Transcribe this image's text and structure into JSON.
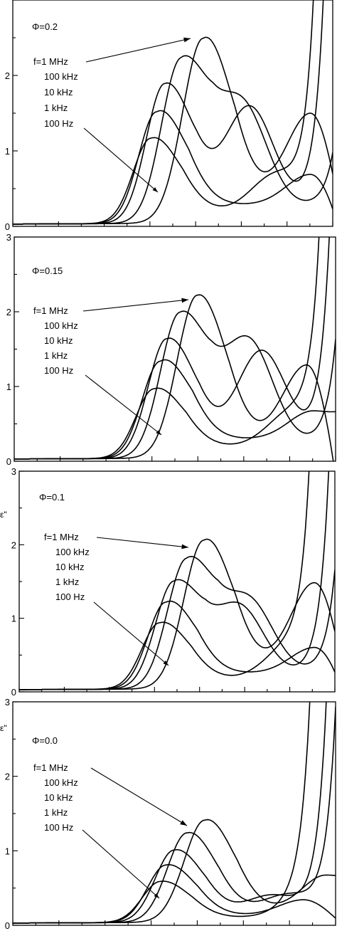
{
  "chart_data": [
    {
      "type": "line",
      "panel_label": "Φ=0.2",
      "ylabel": "",
      "ylim": [
        0,
        3
      ],
      "yticks": [
        "0",
        "1",
        "2",
        ""
      ],
      "legend": [
        "f=1 MHz",
        "100 kHz",
        "10 kHz",
        "1 kHz",
        "100 Hz"
      ],
      "series": [
        {
          "peak": {
            "x": 0.595,
            "y": 2.45
          },
          "sec": {
            "x": 0.93,
            "y": 1.3
          },
          "endY": 0.9,
          "rise": 2.0,
          "valley": 0.5
        },
        {
          "peak": {
            "x": 0.525,
            "y": 2.15
          },
          "sec": {
            "x": 0.72,
            "y": 1.4
          },
          "endY": 3.0,
          "rise": 0.92,
          "valley": 0.35
        },
        {
          "peak": {
            "x": 0.475,
            "y": 1.85
          },
          "sec": {
            "x": 0.74,
            "y": 1.45
          },
          "endY": 3.0,
          "rise": 0.85,
          "valley": 0.3
        },
        {
          "peak": {
            "x": 0.45,
            "y": 1.48
          },
          "sec": {
            "x": 0.93,
            "y": 0.52
          },
          "endY": 0.2,
          "rise": 2.0,
          "valley": 0.4
        },
        {
          "peak": {
            "x": 0.432,
            "y": 1.13
          },
          "sec": {
            "x": 0.82,
            "y": 0.55
          },
          "endY": 3.0,
          "rise": 0.82,
          "valley": 0.25
        }
      ]
    },
    {
      "type": "line",
      "panel_label": "Φ=0.15",
      "ylabel": "",
      "ylim": [
        0,
        3
      ],
      "yticks": [
        "0",
        "1",
        "2",
        "3"
      ],
      "legend": [
        "f=1 MHz",
        "100 kHz",
        "10 kHz",
        "1 kHz",
        "100 Hz"
      ],
      "series": [
        {
          "peak": {
            "x": 0.57,
            "y": 2.18
          },
          "sec": {
            "x": 0.91,
            "y": 1.15
          },
          "endY": 0.2,
          "rise": 2.0,
          "valley": 0.3
        },
        {
          "peak": {
            "x": 0.515,
            "y": 1.93
          },
          "sec": {
            "x": 0.73,
            "y": 1.45
          },
          "endY": 3.0,
          "rise": 0.9,
          "valley": 0.3
        },
        {
          "peak": {
            "x": 0.475,
            "y": 1.6
          },
          "sec": {
            "x": 0.77,
            "y": 1.35
          },
          "endY": 3.0,
          "rise": 0.86,
          "valley": 0.28
        },
        {
          "peak": {
            "x": 0.455,
            "y": 1.3
          },
          "sec": {
            "x": 0.93,
            "y": 0.5
          },
          "endY": 0.62,
          "rise": 2.0,
          "valley": 0.42
        },
        {
          "peak": {
            "x": 0.435,
            "y": 0.93
          },
          "sec": {
            "x": 0.86,
            "y": 0.5
          },
          "endY": 3.0,
          "rise": 0.83,
          "valley": 0.25
        }
      ]
    },
    {
      "type": "line",
      "panel_label": "Φ=0.1",
      "ylabel": "ε\"",
      "ylim": [
        0,
        3
      ],
      "yticks": [
        "0",
        "1",
        "2",
        "3"
      ],
      "legend": [
        "f=1 MHz",
        "100 kHz",
        "10 kHz",
        "1 kHz",
        "100 Hz"
      ],
      "series": [
        {
          "peak": {
            "x": 0.585,
            "y": 2.02
          },
          "sec": {
            "x": 0.935,
            "y": 1.3
          },
          "endY": 1.0,
          "rise": 2.0,
          "valley": 0.45
        },
        {
          "peak": {
            "x": 0.53,
            "y": 1.75
          },
          "sec": {
            "x": 0.73,
            "y": 1.05
          },
          "endY": 3.0,
          "rise": 0.9,
          "valley": 0.35
        },
        {
          "peak": {
            "x": 0.49,
            "y": 1.45
          },
          "sec": {
            "x": 0.7,
            "y": 1.0
          },
          "endY": 3.0,
          "rise": 0.86,
          "valley": 0.3
        },
        {
          "peak": {
            "x": 0.465,
            "y": 1.18
          },
          "sec": {
            "x": 0.935,
            "y": 0.45
          },
          "endY": 0.22,
          "rise": 2.0,
          "valley": 0.35
        },
        {
          "peak": {
            "x": 0.445,
            "y": 0.9
          },
          "sec": {
            "x": 0.85,
            "y": 0.45
          },
          "endY": 3.0,
          "rise": 0.8,
          "valley": 0.22
        }
      ]
    },
    {
      "type": "line",
      "panel_label": "Φ=0.0",
      "ylabel": "ε\"",
      "ylim": [
        0,
        3
      ],
      "yticks": [
        "0",
        "1",
        "2",
        "3"
      ],
      "legend": [
        "f=1 MHz",
        "100 kHz",
        "10 kHz",
        "1 kHz",
        "100 Hz"
      ],
      "series": [
        {
          "peak": {
            "x": 0.595,
            "y": 1.37
          },
          "sec": {
            "x": 0.97,
            "y": 0.55
          },
          "endY": 0.58,
          "rise": 2.0,
          "valley": 0.25
        },
        {
          "peak": {
            "x": 0.54,
            "y": 1.2
          },
          "sec": {
            "x": 0.85,
            "y": 0.3
          },
          "endY": 3.0,
          "rise": 0.88,
          "valley": 0.2
        },
        {
          "peak": {
            "x": 0.5,
            "y": 0.97
          },
          "sec": {
            "x": 0.8,
            "y": 0.3
          },
          "endY": 3.0,
          "rise": 0.85,
          "valley": 0.18
        },
        {
          "peak": {
            "x": 0.475,
            "y": 0.77
          },
          "sec": {
            "x": 0.9,
            "y": 0.25
          },
          "endY": 0.12,
          "rise": 2.0,
          "valley": 0.15
        },
        {
          "peak": {
            "x": 0.458,
            "y": 0.55
          },
          "sec": {
            "x": 0.9,
            "y": 0.2
          },
          "endY": 3.0,
          "rise": 0.8,
          "valley": 0.1
        }
      ]
    }
  ]
}
